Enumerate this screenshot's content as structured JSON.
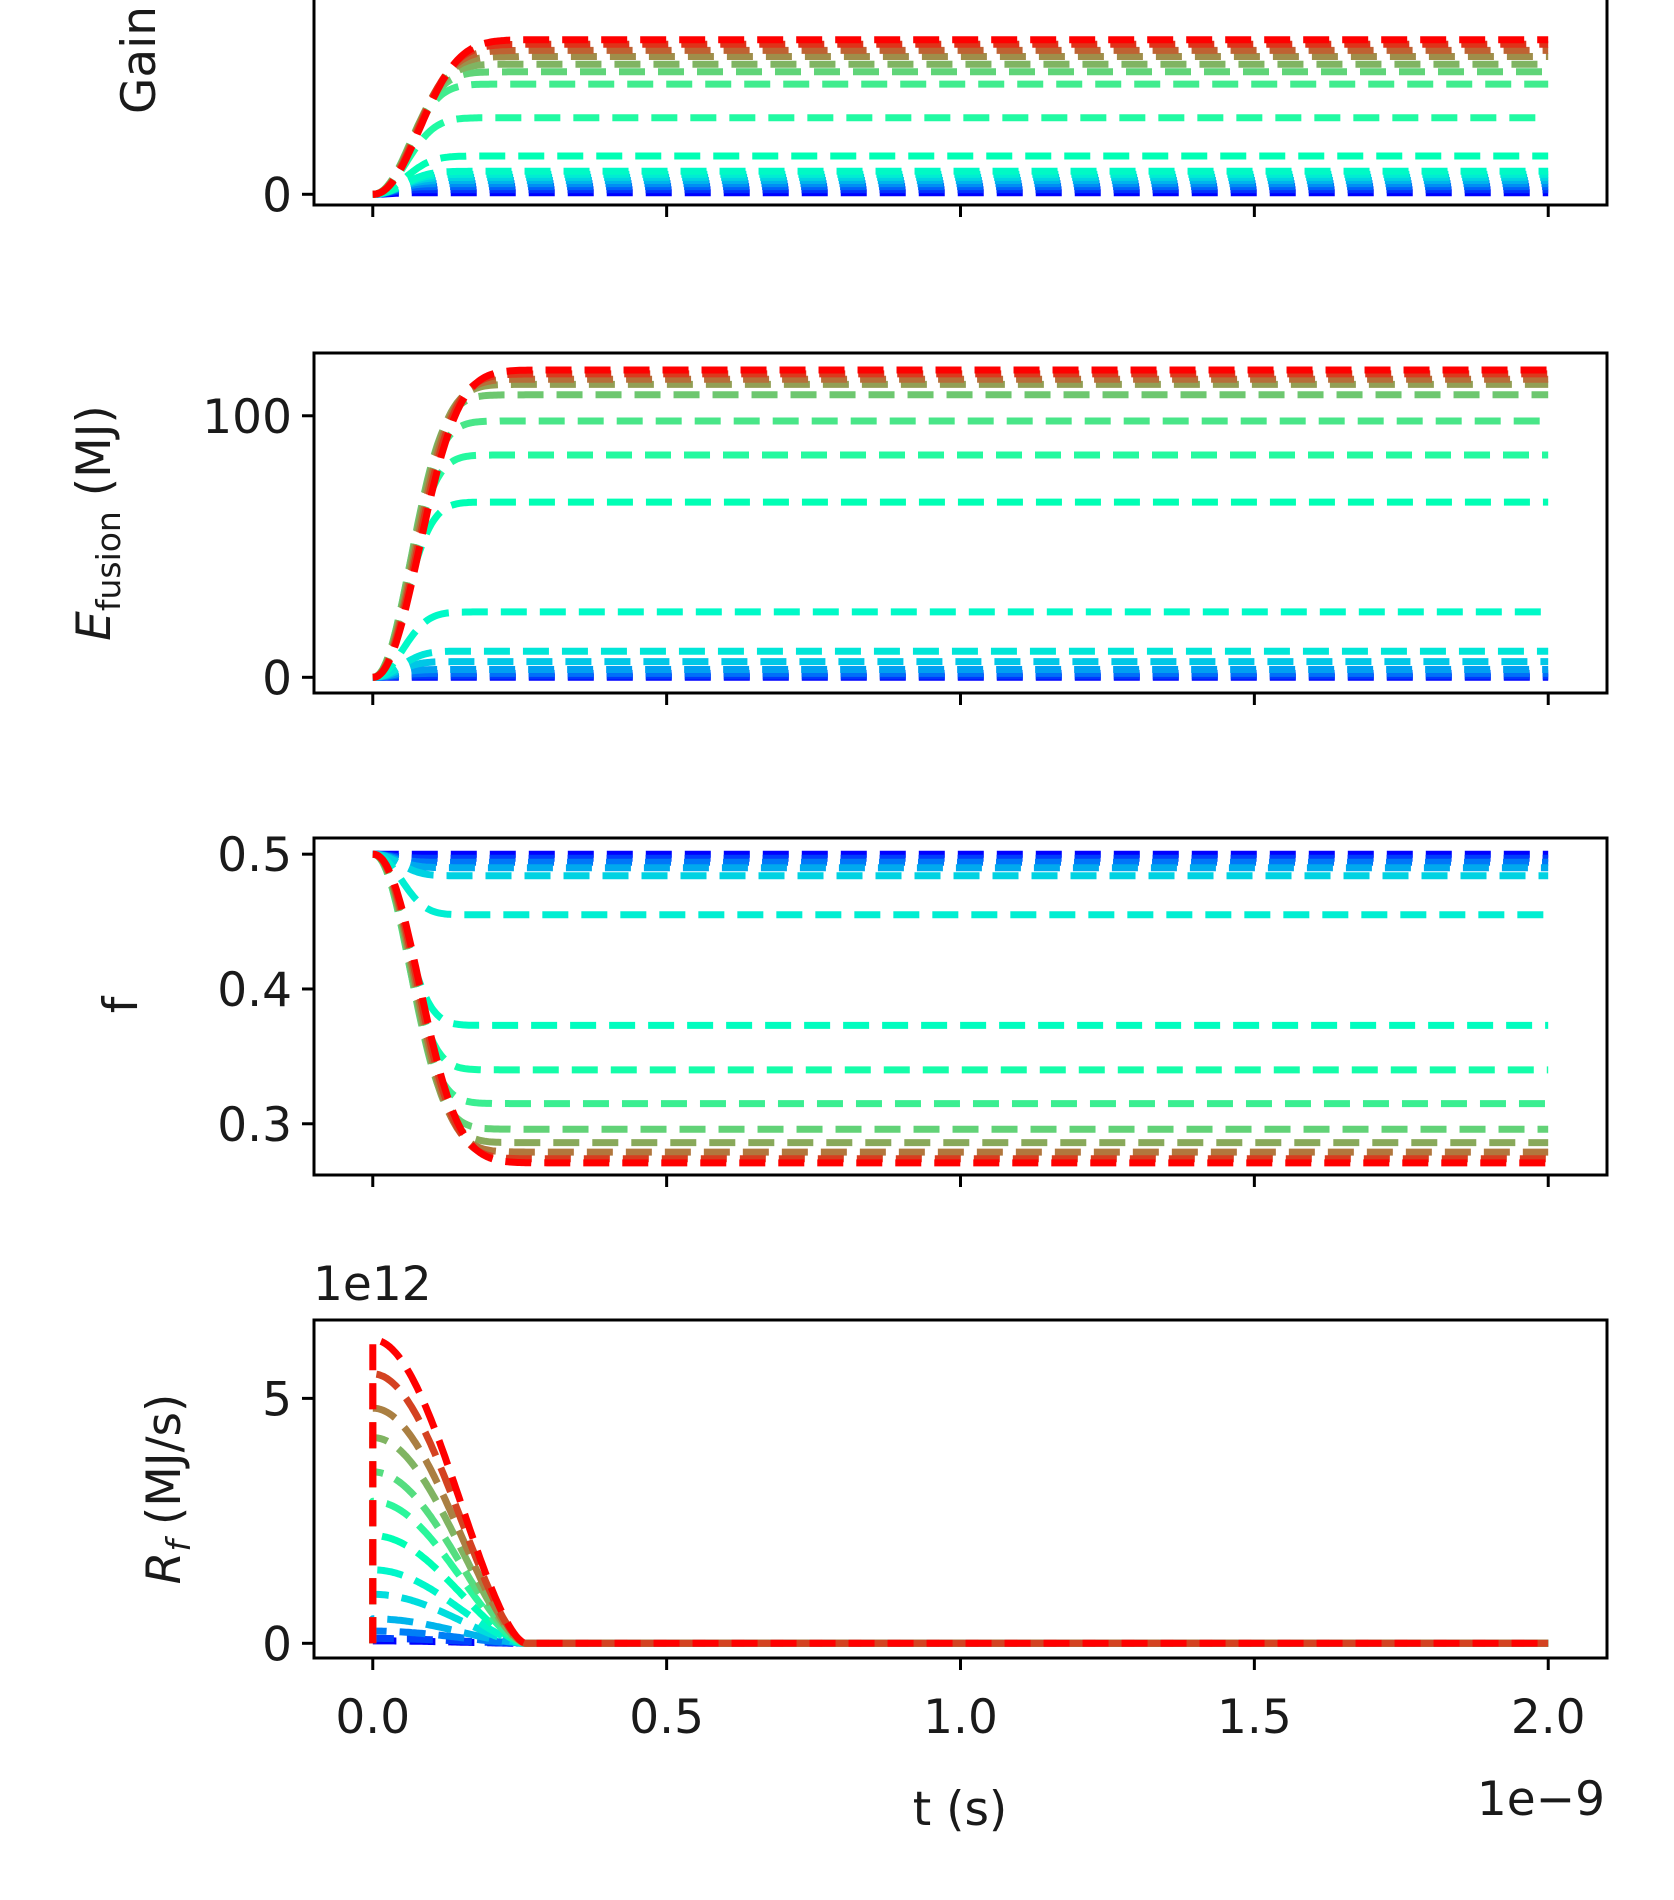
{
  "chart_data": [
    {
      "type": "line",
      "panel": "gain",
      "ylabel": "Gain",
      "yticks": [
        {
          "value": 0,
          "label": "0"
        }
      ],
      "ylim": [
        -0.35,
        7.0
      ],
      "series_style": "dashed",
      "series_finals": [
        0.05,
        0.15,
        0.25,
        0.35,
        0.45,
        0.55,
        0.65,
        0.75,
        1.25,
        2.5,
        3.6,
        4.0,
        4.25,
        4.5,
        4.7,
        4.9,
        5.05
      ],
      "series_peaks": null
    },
    {
      "type": "line",
      "panel": "fusion-energy",
      "ylabel": "E_fusion (MJ)",
      "ylabel_main": "E",
      "ylabel_sub": "fusion",
      "ylabel_unit": " (MJ)",
      "yticks": [
        {
          "value": 0,
          "label": "0"
        },
        {
          "value": 100,
          "label": "100"
        }
      ],
      "ylim": [
        -6,
        124
      ],
      "series_style": "dashed",
      "series_finals": [
        0,
        0.5,
        1.5,
        3,
        6,
        10,
        25,
        67,
        85,
        98,
        108,
        112,
        114,
        116,
        117.5
      ],
      "series_peaks": null
    },
    {
      "type": "line",
      "panel": "fraction",
      "ylabel": "f",
      "yticks": [
        {
          "value": 0.3,
          "label": "0.3"
        },
        {
          "value": 0.4,
          "label": "0.4"
        },
        {
          "value": 0.5,
          "label": "0.5"
        }
      ],
      "ylim": [
        0.262,
        0.512
      ],
      "series_style": "dashed",
      "series_finals": [
        0.5,
        0.497,
        0.494,
        0.49,
        0.484,
        0.455,
        0.373,
        0.34,
        0.315,
        0.296,
        0.286,
        0.279,
        0.274,
        0.271
      ],
      "series_peaks": null
    },
    {
      "type": "line",
      "panel": "fusion-rate",
      "ylabel": "R_f (MJ/s)",
      "ylabel_main": "R",
      "ylabel_sub": "f",
      "ylabel_unit": " (MJ/s)",
      "offset_label": "1e12",
      "yticks": [
        {
          "value": 0,
          "label": "0"
        },
        {
          "value": 5,
          "label": "5"
        }
      ],
      "ylim": [
        -0.3,
        6.6
      ],
      "series_style": "dashed",
      "series_finals": null,
      "series_peaks": [
        0.05,
        0.1,
        0.25,
        0.5,
        1.0,
        1.5,
        2.2,
        2.9,
        3.5,
        4.2,
        4.8,
        5.5,
        6.2
      ]
    }
  ],
  "x_axis": {
    "xlabel": "t (s)",
    "offset_label": "1e−9",
    "xlim": [
      -0.1,
      2.1
    ],
    "xticks": [
      {
        "value": 0.0,
        "label": "0.0"
      },
      {
        "value": 0.5,
        "label": "0.5"
      },
      {
        "value": 1.0,
        "label": "1.0"
      },
      {
        "value": 1.5,
        "label": "1.5"
      },
      {
        "value": 2.0,
        "label": "2.0"
      }
    ],
    "data_x_end": 2.0
  },
  "colormap": "rainbow"
}
